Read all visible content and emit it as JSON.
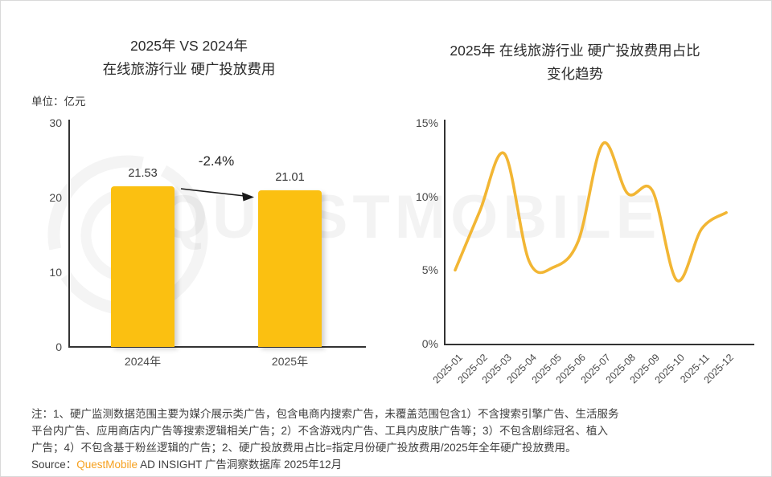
{
  "watermark": {
    "text": "QUESTMOBILE"
  },
  "chart_data": [
    {
      "type": "bar",
      "title": "2025年 VS 2024年 在线旅游行业 硬广投放费用",
      "title_lines": [
        "2025年 VS 2024年",
        "在线旅游行业 硬广投放费用"
      ],
      "unit_label": "单位：亿元",
      "categories": [
        "2024年",
        "2025年"
      ],
      "values": [
        21.53,
        21.01
      ],
      "value_labels": [
        "21.53",
        "21.01"
      ],
      "change_label": "-2.4%",
      "ylabel": "亿元",
      "y_ticks": [
        30,
        20,
        10,
        0
      ],
      "ylim": [
        0,
        30
      ],
      "grid": false,
      "bar_color": "#FBC011"
    },
    {
      "type": "line",
      "title": "2025年 在线旅游行业 硬广投放费用占比 变化趋势",
      "title_lines": [
        "2025年 在线旅游行业 硬广投放费用占比",
        "变化趋势"
      ],
      "x": [
        "2025-01",
        "2025-02",
        "2025-03",
        "2025-04",
        "2025-05",
        "2025-06",
        "2025-07",
        "2025-08",
        "2025-09",
        "2025-10",
        "2025-11",
        "2025-12"
      ],
      "values": [
        5.0,
        9.0,
        12.9,
        5.6,
        5.2,
        7.0,
        13.6,
        10.2,
        10.4,
        4.3,
        7.8,
        8.9
      ],
      "y_tick_labels": [
        "15%",
        "10%",
        "5%",
        "0%"
      ],
      "y_tick_values": [
        15,
        10,
        5,
        0
      ],
      "ylim": [
        0,
        15
      ],
      "grid": false,
      "line_color": "#F2B634"
    }
  ],
  "notes": {
    "lines": [
      "注：1、硬广监测数据范围主要为媒介展示类广告，包含电商内搜索广告，未覆盖范围包含1）不含搜索引擎广告、生活服务",
      "平台内广告、应用商店内广告等搜索逻辑相关广告；2）不含游戏内广告、工具内皮肤广告等；3）不包含剧综冠名、植入",
      "广告；4）不包含基于粉丝逻辑的广告；2、硬广投放费用占比=指定月份硬广投放费用/2025年全年硬广投放费用。"
    ]
  },
  "source": {
    "prefix": "Source：",
    "brand": "QuestMobile",
    "rest": " AD INSIGHT 广告洞察数据库 2025年12月"
  }
}
